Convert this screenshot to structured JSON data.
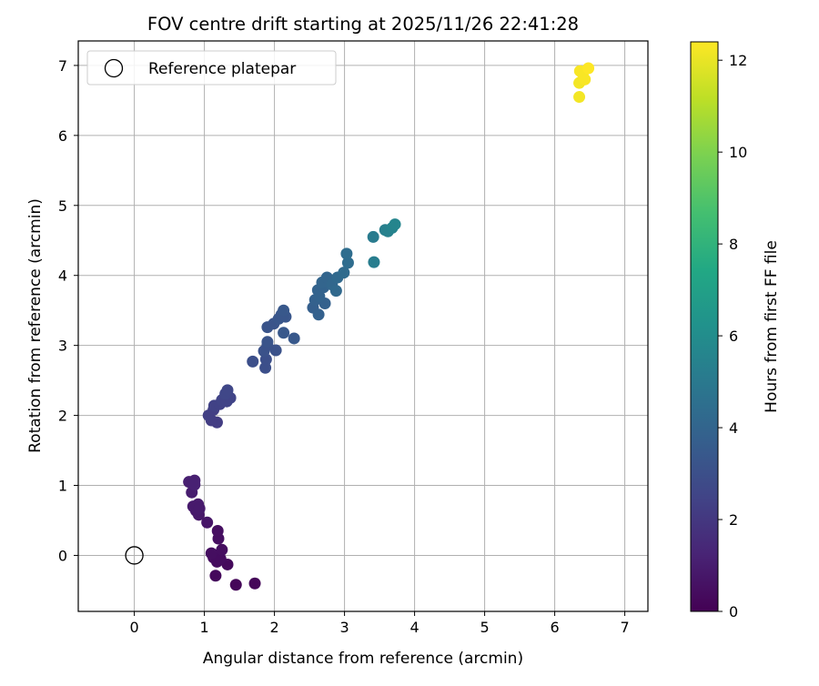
{
  "chart_data": {
    "type": "scatter",
    "title": "FOV centre drift starting at 2025/11/26 22:41:28",
    "xlabel": "Angular distance from reference (arcmin)",
    "ylabel": "Rotation from reference (arcmin)",
    "xlim": [
      -0.8,
      7.33
    ],
    "ylim": [
      -0.8,
      7.35
    ],
    "xticks": [
      0,
      1,
      2,
      3,
      4,
      5,
      6,
      7
    ],
    "yticks": [
      0,
      1,
      2,
      3,
      4,
      5,
      6,
      7
    ],
    "grid": true,
    "legend": {
      "position": "top-left",
      "entries": [
        "Reference platepar"
      ]
    },
    "reference_point": {
      "name": "Reference platepar",
      "x": 0,
      "y": 0
    },
    "colorbar": {
      "label": "Hours from first FF file",
      "range": [
        0,
        12.4
      ],
      "ticks": [
        0,
        2,
        4,
        6,
        8,
        10,
        12
      ],
      "colormap": "viridis"
    },
    "points": [
      {
        "x": 1.45,
        "y": -0.42,
        "h": 0.2
      },
      {
        "x": 1.72,
        "y": -0.4,
        "h": 0.2
      },
      {
        "x": 1.16,
        "y": -0.29,
        "h": 0.3
      },
      {
        "x": 1.33,
        "y": -0.13,
        "h": 0.3
      },
      {
        "x": 1.18,
        "y": -0.09,
        "h": 0.4
      },
      {
        "x": 1.13,
        "y": -0.03,
        "h": 0.4
      },
      {
        "x": 1.23,
        "y": -0.05,
        "h": 0.4
      },
      {
        "x": 1.1,
        "y": 0.03,
        "h": 0.45
      },
      {
        "x": 1.25,
        "y": 0.08,
        "h": 0.45
      },
      {
        "x": 1.2,
        "y": 0.24,
        "h": 0.5
      },
      {
        "x": 1.19,
        "y": 0.35,
        "h": 0.5
      },
      {
        "x": 1.04,
        "y": 0.47,
        "h": 0.7
      },
      {
        "x": 0.92,
        "y": 0.58,
        "h": 0.8
      },
      {
        "x": 0.88,
        "y": 0.64,
        "h": 0.85
      },
      {
        "x": 0.84,
        "y": 0.7,
        "h": 0.9
      },
      {
        "x": 0.91,
        "y": 0.73,
        "h": 0.9
      },
      {
        "x": 0.93,
        "y": 0.67,
        "h": 0.9
      },
      {
        "x": 0.82,
        "y": 0.9,
        "h": 1.0
      },
      {
        "x": 0.78,
        "y": 1.05,
        "h": 1.1
      },
      {
        "x": 0.86,
        "y": 1.07,
        "h": 1.1
      },
      {
        "x": 0.86,
        "y": 1.01,
        "h": 1.15
      },
      {
        "x": 1.18,
        "y": 1.9,
        "h": 2.2
      },
      {
        "x": 1.1,
        "y": 1.93,
        "h": 2.2
      },
      {
        "x": 1.06,
        "y": 2.0,
        "h": 2.3
      },
      {
        "x": 1.13,
        "y": 2.08,
        "h": 2.3
      },
      {
        "x": 1.14,
        "y": 2.14,
        "h": 2.4
      },
      {
        "x": 1.22,
        "y": 2.16,
        "h": 2.4
      },
      {
        "x": 1.25,
        "y": 2.22,
        "h": 2.5
      },
      {
        "x": 1.32,
        "y": 2.2,
        "h": 2.5
      },
      {
        "x": 1.37,
        "y": 2.25,
        "h": 2.5
      },
      {
        "x": 1.3,
        "y": 2.31,
        "h": 2.6
      },
      {
        "x": 1.33,
        "y": 2.36,
        "h": 2.6
      },
      {
        "x": 1.69,
        "y": 2.77,
        "h": 3.0
      },
      {
        "x": 1.87,
        "y": 2.68,
        "h": 3.0
      },
      {
        "x": 1.88,
        "y": 2.8,
        "h": 3.0
      },
      {
        "x": 1.85,
        "y": 2.92,
        "h": 3.1
      },
      {
        "x": 2.02,
        "y": 2.93,
        "h": 3.1
      },
      {
        "x": 1.9,
        "y": 3.0,
        "h": 3.1
      },
      {
        "x": 1.9,
        "y": 3.05,
        "h": 3.2
      },
      {
        "x": 1.9,
        "y": 3.26,
        "h": 3.2
      },
      {
        "x": 1.99,
        "y": 3.31,
        "h": 3.2
      },
      {
        "x": 2.06,
        "y": 3.38,
        "h": 3.3
      },
      {
        "x": 2.1,
        "y": 3.44,
        "h": 3.3
      },
      {
        "x": 2.16,
        "y": 3.41,
        "h": 3.3
      },
      {
        "x": 2.13,
        "y": 3.5,
        "h": 3.4
      },
      {
        "x": 2.13,
        "y": 3.18,
        "h": 3.4
      },
      {
        "x": 2.28,
        "y": 3.1,
        "h": 3.4
      },
      {
        "x": 2.55,
        "y": 3.54,
        "h": 3.7
      },
      {
        "x": 2.63,
        "y": 3.44,
        "h": 3.8
      },
      {
        "x": 2.72,
        "y": 3.6,
        "h": 3.8
      },
      {
        "x": 2.58,
        "y": 3.65,
        "h": 3.8
      },
      {
        "x": 2.64,
        "y": 3.7,
        "h": 3.9
      },
      {
        "x": 2.62,
        "y": 3.79,
        "h": 3.9
      },
      {
        "x": 2.7,
        "y": 3.83,
        "h": 3.9
      },
      {
        "x": 2.68,
        "y": 3.9,
        "h": 4.0
      },
      {
        "x": 2.75,
        "y": 3.97,
        "h": 4.0
      },
      {
        "x": 2.82,
        "y": 3.87,
        "h": 4.1
      },
      {
        "x": 2.88,
        "y": 3.78,
        "h": 4.2
      },
      {
        "x": 2.9,
        "y": 3.97,
        "h": 4.2
      },
      {
        "x": 2.99,
        "y": 4.04,
        "h": 4.3
      },
      {
        "x": 3.05,
        "y": 4.18,
        "h": 4.4
      },
      {
        "x": 3.03,
        "y": 4.31,
        "h": 4.4
      },
      {
        "x": 3.41,
        "y": 4.55,
        "h": 5.1
      },
      {
        "x": 3.42,
        "y": 4.19,
        "h": 5.2
      },
      {
        "x": 3.58,
        "y": 4.65,
        "h": 5.3
      },
      {
        "x": 3.62,
        "y": 4.63,
        "h": 5.4
      },
      {
        "x": 3.68,
        "y": 4.68,
        "h": 5.5
      },
      {
        "x": 3.72,
        "y": 4.73,
        "h": 5.6
      },
      {
        "x": 6.35,
        "y": 6.55,
        "h": 12.2
      },
      {
        "x": 6.35,
        "y": 6.75,
        "h": 12.2
      },
      {
        "x": 6.43,
        "y": 6.8,
        "h": 12.3
      },
      {
        "x": 6.4,
        "y": 6.88,
        "h": 12.3
      },
      {
        "x": 6.36,
        "y": 6.92,
        "h": 12.3
      },
      {
        "x": 6.48,
        "y": 6.96,
        "h": 12.4
      }
    ]
  }
}
